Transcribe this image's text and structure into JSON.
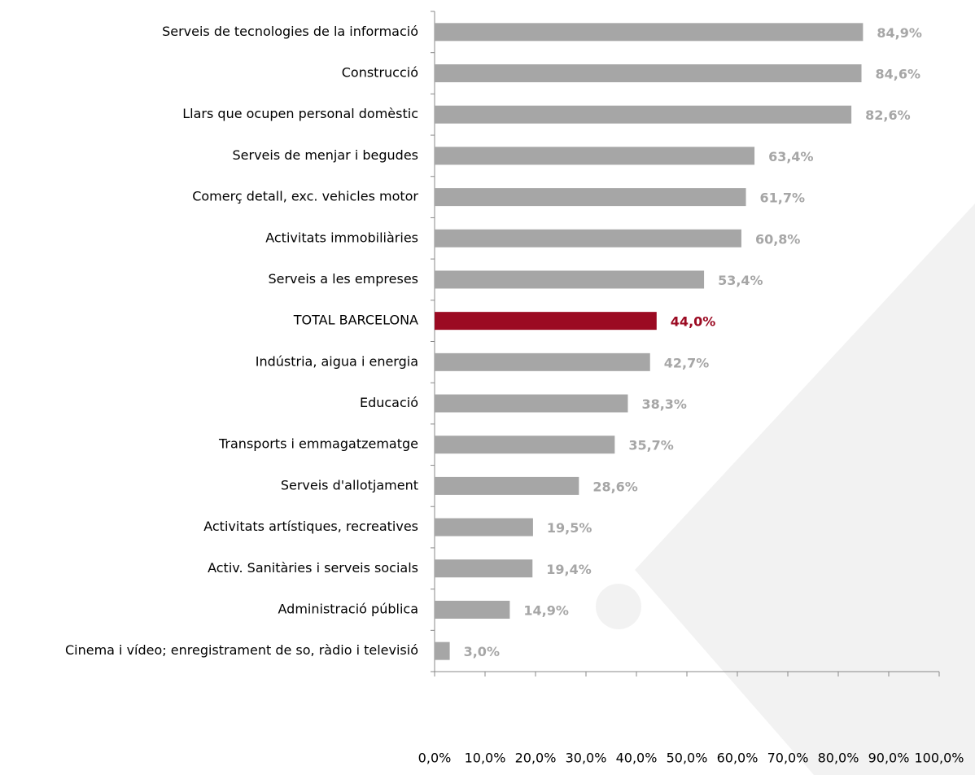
{
  "chart_data": {
    "type": "bar",
    "orientation": "horizontal",
    "categories": [
      "Serveis de tecnologies de la informació",
      "Construcció",
      "Llars que ocupen personal domèstic",
      "Serveis de menjar i begudes",
      "Comerç detall, exc. vehicles motor",
      "Activitats immobiliàries",
      "Serveis a les empreses",
      "TOTAL BARCELONA",
      "Indústria, aigua  i energia",
      "Educació",
      "Transports i emmagatzematge",
      "Serveis d'allotjament",
      "Activitats artístiques, recreatives",
      "Activ. Sanitàries i serveis socials",
      "Administració pública",
      "Cinema i vídeo; enregistrament de so, ràdio i televisió"
    ],
    "values": [
      84.9,
      84.6,
      82.6,
      63.4,
      61.7,
      60.8,
      53.4,
      44.0,
      42.7,
      38.3,
      35.7,
      28.6,
      19.5,
      19.4,
      14.9,
      3.0
    ],
    "value_labels": [
      "84,9%",
      "84,6%",
      "82,6%",
      "63,4%",
      "61,7%",
      "60,8%",
      "53,4%",
      "44,0%",
      "42,7%",
      "38,3%",
      "35,7%",
      "28,6%",
      "19,5%",
      "19,4%",
      "14,9%",
      "3,0%"
    ],
    "colors": [
      "#a6a6a6",
      "#a6a6a6",
      "#a6a6a6",
      "#a6a6a6",
      "#a6a6a6",
      "#a6a6a6",
      "#a6a6a6",
      "#9b0a22",
      "#a6a6a6",
      "#a6a6a6",
      "#a6a6a6",
      "#a6a6a6",
      "#a6a6a6",
      "#a6a6a6",
      "#a6a6a6",
      "#a6a6a6"
    ],
    "xlim": [
      0,
      100
    ],
    "xticks": [
      {
        "value": 0,
        "label": "0,0%"
      },
      {
        "value": 10,
        "label": "10,0%"
      },
      {
        "value": 20,
        "label": "20,0%"
      },
      {
        "value": 30,
        "label": "30,0%"
      },
      {
        "value": 40,
        "label": "40,0%"
      },
      {
        "value": 50,
        "label": "50,0%"
      },
      {
        "value": 60,
        "label": "60,0%"
      },
      {
        "value": 70,
        "label": "70,0%"
      },
      {
        "value": 80,
        "label": "80,0%"
      },
      {
        "value": 90,
        "label": "90,0%"
      },
      {
        "value": 100,
        "label": "100,0%"
      }
    ],
    "grid": false
  }
}
